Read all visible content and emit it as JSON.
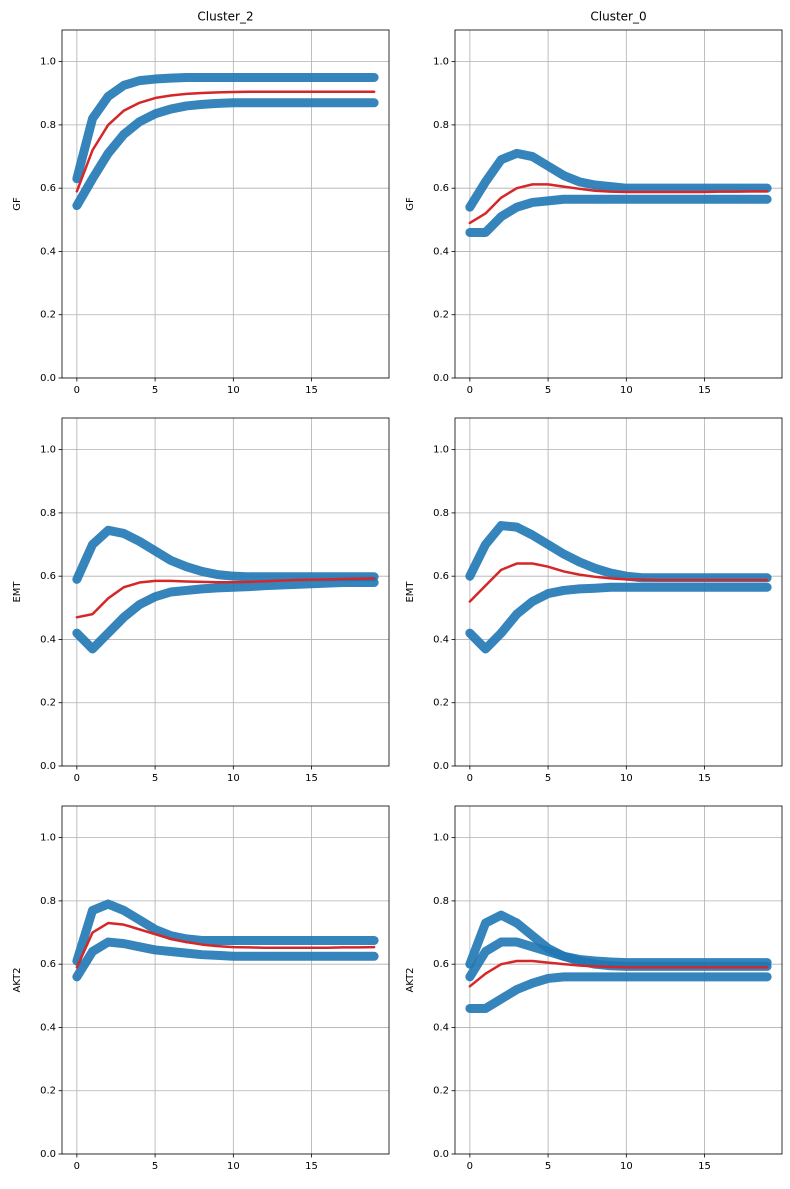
{
  "chart_data": [
    {
      "type": "line",
      "title": "Cluster_2",
      "ylabel": "GF",
      "grid": true,
      "x": [
        0,
        1,
        2,
        3,
        4,
        5,
        6,
        7,
        8,
        9,
        10,
        11,
        12,
        13,
        14,
        15,
        16,
        17,
        18,
        19
      ],
      "xlim": [
        -0.95,
        19.95
      ],
      "xticks": [
        0,
        5,
        10,
        15
      ],
      "ylim": [
        0,
        1.1
      ],
      "yticks": [
        {
          "value": 0,
          "label": "0.0"
        },
        0.2,
        0.4,
        0.6,
        0.8,
        {
          "value": 1,
          "label": "1.0"
        }
      ],
      "series": [
        {
          "color": "#1f77b4",
          "values": [
            0.63,
            0.82,
            0.89,
            0.925,
            0.94,
            0.945,
            0.948,
            0.95,
            0.95,
            0.95,
            0.95,
            0.95,
            0.95,
            0.95,
            0.95,
            0.95,
            0.95,
            0.95,
            0.95,
            0.95
          ]
        },
        {
          "color": "#1f77b4",
          "values": [
            0.545,
            0.63,
            0.71,
            0.77,
            0.81,
            0.835,
            0.85,
            0.86,
            0.865,
            0.868,
            0.87,
            0.87,
            0.87,
            0.87,
            0.87,
            0.87,
            0.87,
            0.87,
            0.87,
            0.87
          ]
        },
        {
          "color": "#d62728",
          "values": [
            0.59,
            0.72,
            0.8,
            0.845,
            0.87,
            0.885,
            0.893,
            0.898,
            0.901,
            0.903,
            0.904,
            0.905,
            0.905,
            0.905,
            0.905,
            0.905,
            0.905,
            0.905,
            0.905,
            0.905
          ]
        }
      ]
    },
    {
      "type": "line",
      "title": "Cluster_0",
      "ylabel": "GF",
      "grid": true,
      "x": [
        0,
        1,
        2,
        3,
        4,
        5,
        6,
        7,
        8,
        9,
        10,
        11,
        12,
        13,
        14,
        15,
        16,
        17,
        18,
        19
      ],
      "xlim": [
        -0.95,
        19.95
      ],
      "xticks": [
        0,
        5,
        10,
        15
      ],
      "ylim": [
        0,
        1.1
      ],
      "yticks": [
        {
          "value": 0,
          "label": "0.0"
        },
        0.2,
        0.4,
        0.6,
        0.8,
        {
          "value": 1,
          "label": "1.0"
        }
      ],
      "series": [
        {
          "color": "#1f77b4",
          "values": [
            0.54,
            0.62,
            0.69,
            0.71,
            0.7,
            0.67,
            0.64,
            0.62,
            0.61,
            0.605,
            0.6,
            0.6,
            0.6,
            0.6,
            0.6,
            0.6,
            0.6,
            0.6,
            0.6,
            0.6
          ]
        },
        {
          "color": "#1f77b4",
          "values": [
            0.46,
            0.46,
            0.51,
            0.54,
            0.555,
            0.56,
            0.565,
            0.565,
            0.565,
            0.565,
            0.565,
            0.565,
            0.565,
            0.565,
            0.565,
            0.565,
            0.565,
            0.565,
            0.565,
            0.565
          ]
        },
        {
          "color": "#d62728",
          "values": [
            0.49,
            0.52,
            0.57,
            0.6,
            0.612,
            0.612,
            0.605,
            0.598,
            0.592,
            0.589,
            0.588,
            0.588,
            0.588,
            0.588,
            0.588,
            0.588,
            0.589,
            0.589,
            0.59,
            0.59
          ]
        }
      ]
    },
    {
      "type": "line",
      "ylabel": "EMT",
      "grid": true,
      "x": [
        0,
        1,
        2,
        3,
        4,
        5,
        6,
        7,
        8,
        9,
        10,
        11,
        12,
        13,
        14,
        15,
        16,
        17,
        18,
        19
      ],
      "xlim": [
        -0.95,
        19.95
      ],
      "xticks": [
        0,
        5,
        10,
        15
      ],
      "ylim": [
        0,
        1.1
      ],
      "yticks": [
        {
          "value": 0,
          "label": "0.0"
        },
        0.2,
        0.4,
        0.6,
        0.8,
        {
          "value": 1,
          "label": "1.0"
        }
      ],
      "series": [
        {
          "color": "#1f77b4",
          "values": [
            0.59,
            0.7,
            0.745,
            0.735,
            0.71,
            0.68,
            0.65,
            0.63,
            0.615,
            0.605,
            0.6,
            0.598,
            0.598,
            0.598,
            0.598,
            0.598,
            0.598,
            0.598,
            0.598,
            0.598
          ]
        },
        {
          "color": "#1f77b4",
          "values": [
            0.42,
            0.37,
            0.42,
            0.47,
            0.51,
            0.535,
            0.55,
            0.555,
            0.56,
            0.563,
            0.565,
            0.567,
            0.57,
            0.572,
            0.574,
            0.576,
            0.578,
            0.58,
            0.58,
            0.58
          ]
        },
        {
          "color": "#d62728",
          "values": [
            0.47,
            0.48,
            0.53,
            0.565,
            0.58,
            0.585,
            0.585,
            0.583,
            0.582,
            0.581,
            0.581,
            0.582,
            0.584,
            0.586,
            0.588,
            0.589,
            0.59,
            0.591,
            0.592,
            0.593
          ]
        }
      ]
    },
    {
      "type": "line",
      "ylabel": "EMT",
      "grid": true,
      "x": [
        0,
        1,
        2,
        3,
        4,
        5,
        6,
        7,
        8,
        9,
        10,
        11,
        12,
        13,
        14,
        15,
        16,
        17,
        18,
        19
      ],
      "xlim": [
        -0.95,
        19.95
      ],
      "xticks": [
        0,
        5,
        10,
        15
      ],
      "ylim": [
        0,
        1.1
      ],
      "yticks": [
        {
          "value": 0,
          "label": "0.0"
        },
        0.2,
        0.4,
        0.6,
        0.8,
        {
          "value": 1,
          "label": "1.0"
        }
      ],
      "series": [
        {
          "color": "#1f77b4",
          "values": [
            0.6,
            0.7,
            0.76,
            0.755,
            0.73,
            0.7,
            0.67,
            0.645,
            0.625,
            0.61,
            0.6,
            0.595,
            0.595,
            0.595,
            0.595,
            0.595,
            0.595,
            0.595,
            0.595,
            0.595
          ]
        },
        {
          "color": "#1f77b4",
          "values": [
            0.42,
            0.37,
            0.42,
            0.48,
            0.52,
            0.545,
            0.555,
            0.56,
            0.562,
            0.565,
            0.565,
            0.565,
            0.565,
            0.565,
            0.565,
            0.565,
            0.565,
            0.565,
            0.565,
            0.565
          ]
        },
        {
          "color": "#d62728",
          "values": [
            0.52,
            0.57,
            0.62,
            0.64,
            0.64,
            0.63,
            0.615,
            0.605,
            0.598,
            0.593,
            0.59,
            0.589,
            0.588,
            0.588,
            0.588,
            0.588,
            0.588,
            0.588,
            0.588,
            0.588
          ]
        }
      ]
    },
    {
      "type": "line",
      "ylabel": "AKT2",
      "grid": true,
      "x": [
        0,
        1,
        2,
        3,
        4,
        5,
        6,
        7,
        8,
        9,
        10,
        11,
        12,
        13,
        14,
        15,
        16,
        17,
        18,
        19
      ],
      "xlim": [
        -0.95,
        19.95
      ],
      "xticks": [
        0,
        5,
        10,
        15
      ],
      "ylim": [
        0,
        1.1
      ],
      "yticks": [
        {
          "value": 0,
          "label": "0.0"
        },
        0.2,
        0.4,
        0.6,
        0.8,
        {
          "value": 1,
          "label": "1.0"
        }
      ],
      "series": [
        {
          "color": "#1f77b4",
          "values": [
            0.61,
            0.77,
            0.79,
            0.77,
            0.74,
            0.71,
            0.69,
            0.68,
            0.675,
            0.675,
            0.675,
            0.675,
            0.675,
            0.675,
            0.675,
            0.675,
            0.675,
            0.675,
            0.675,
            0.675
          ]
        },
        {
          "color": "#1f77b4",
          "values": [
            0.56,
            0.64,
            0.67,
            0.665,
            0.655,
            0.645,
            0.64,
            0.635,
            0.63,
            0.628,
            0.625,
            0.625,
            0.625,
            0.625,
            0.625,
            0.625,
            0.625,
            0.625,
            0.625,
            0.625
          ]
        },
        {
          "color": "#d62728",
          "values": [
            0.59,
            0.7,
            0.73,
            0.725,
            0.71,
            0.695,
            0.68,
            0.67,
            0.662,
            0.657,
            0.654,
            0.653,
            0.652,
            0.652,
            0.652,
            0.652,
            0.652,
            0.653,
            0.653,
            0.654
          ]
        }
      ]
    },
    {
      "type": "line",
      "ylabel": "AKT2",
      "grid": true,
      "x": [
        0,
        1,
        2,
        3,
        4,
        5,
        6,
        7,
        8,
        9,
        10,
        11,
        12,
        13,
        14,
        15,
        16,
        17,
        18,
        19
      ],
      "xlim": [
        -0.95,
        19.95
      ],
      "xticks": [
        0,
        5,
        10,
        15
      ],
      "ylim": [
        0,
        1.1
      ],
      "yticks": [
        {
          "value": 0,
          "label": "0.0"
        },
        0.2,
        0.4,
        0.6,
        0.8,
        {
          "value": 1,
          "label": "1.0"
        }
      ],
      "series": [
        {
          "color": "#1f77b4",
          "values": [
            0.6,
            0.73,
            0.755,
            0.73,
            0.69,
            0.65,
            0.625,
            0.61,
            0.6,
            0.595,
            0.593,
            0.593,
            0.593,
            0.593,
            0.593,
            0.593,
            0.593,
            0.593,
            0.593,
            0.593
          ]
        },
        {
          "color": "#1f77b4",
          "values": [
            0.56,
            0.64,
            0.67,
            0.67,
            0.655,
            0.64,
            0.625,
            0.615,
            0.61,
            0.607,
            0.605,
            0.605,
            0.605,
            0.605,
            0.605,
            0.605,
            0.605,
            0.605,
            0.605,
            0.605
          ]
        },
        {
          "color": "#1f77b4",
          "values": [
            0.46,
            0.46,
            0.49,
            0.52,
            0.54,
            0.555,
            0.56,
            0.56,
            0.56,
            0.56,
            0.56,
            0.56,
            0.56,
            0.56,
            0.56,
            0.56,
            0.56,
            0.56,
            0.56,
            0.56
          ]
        },
        {
          "color": "#d62728",
          "values": [
            0.53,
            0.57,
            0.6,
            0.61,
            0.61,
            0.605,
            0.6,
            0.596,
            0.593,
            0.591,
            0.59,
            0.59,
            0.59,
            0.59,
            0.59,
            0.59,
            0.59,
            0.59,
            0.59,
            0.59
          ]
        }
      ]
    }
  ]
}
